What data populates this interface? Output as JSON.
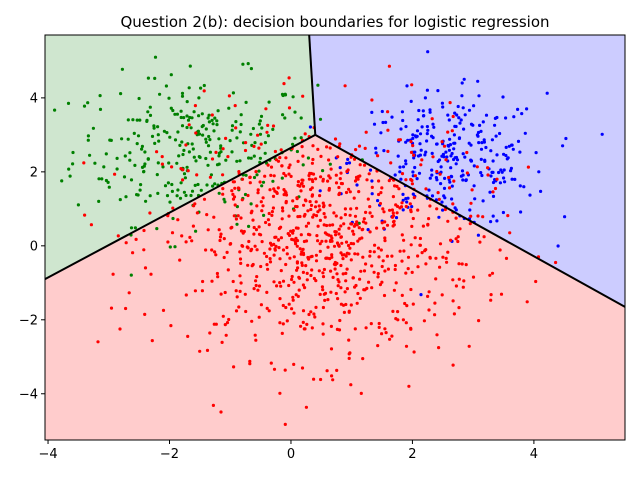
{
  "chart_data": {
    "type": "scatter",
    "title": "Question 2(b): decision boundaries for logistic regression",
    "xlabel": "",
    "ylabel": "",
    "xlim": [
      -4.05,
      5.5
    ],
    "ylim": [
      -5.25,
      5.7
    ],
    "xticks": [
      -4,
      -2,
      0,
      2,
      4
    ],
    "yticks": [
      -4,
      -2,
      0,
      2,
      4
    ],
    "grid": false,
    "legend": "none",
    "boundary_junction": [
      0.4,
      3.0
    ],
    "boundaries": [
      {
        "name": "green-blue",
        "points": [
          [
            0.4,
            3.0
          ],
          [
            0.3,
            5.7
          ]
        ]
      },
      {
        "name": "green-red",
        "points": [
          [
            0.4,
            3.0
          ],
          [
            -4.05,
            -0.9
          ]
        ]
      },
      {
        "name": "blue-red",
        "points": [
          [
            0.4,
            3.0
          ],
          [
            5.5,
            -1.65
          ]
        ]
      }
    ],
    "regions": [
      {
        "class": "green",
        "fill": "#cfe6cf"
      },
      {
        "class": "blue",
        "fill": "#ccccff"
      },
      {
        "class": "red",
        "fill": "#ffcccc"
      }
    ],
    "series": [
      {
        "class": "green",
        "color": "#008000",
        "center": [
          -1.6,
          2.6
        ],
        "spread": [
          1.0,
          1.0
        ],
        "count": 300
      },
      {
        "class": "blue",
        "color": "#0000ff",
        "center": [
          2.6,
          2.3
        ],
        "spread": [
          0.8,
          0.9
        ],
        "count": 300
      },
      {
        "class": "red",
        "color": "#ff0000",
        "center": [
          0.5,
          0.2
        ],
        "spread": [
          1.3,
          1.6
        ],
        "count": 900
      }
    ]
  }
}
